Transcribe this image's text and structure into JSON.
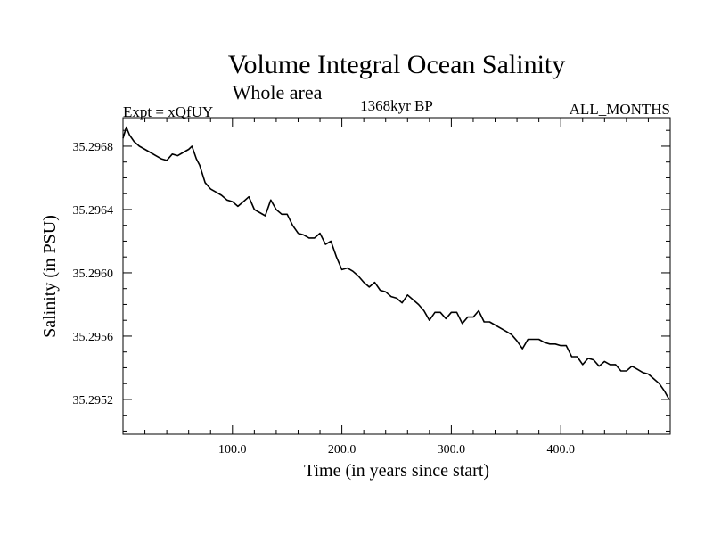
{
  "chart_data": {
    "type": "line",
    "title": "Volume Integral Ocean Salinity",
    "subtitle": "Whole area",
    "experiment_label": "Expt = xQfUY",
    "period_label": "1368kyr BP",
    "months_label": "ALL_MONTHS",
    "xlabel": "Time (in years since start)",
    "ylabel": "Salinity (in PSU)",
    "xlim": [
      0,
      500
    ],
    "ylim": [
      35.29498,
      35.29698
    ],
    "x_ticks": [
      100,
      200,
      300,
      400
    ],
    "x_tick_labels": [
      "100.0",
      "200.0",
      "300.0",
      "400.0"
    ],
    "y_ticks": [
      35.2952,
      35.2956,
      35.296,
      35.2964,
      35.2968
    ],
    "y_tick_labels": [
      "35.2952",
      "35.2956",
      "35.2960",
      "35.2964",
      "35.2968"
    ],
    "grid": false,
    "series": [
      {
        "name": "Volume Integral Ocean Salinity",
        "x": [
          0,
          3,
          6,
          10,
          15,
          20,
          25,
          30,
          35,
          40,
          45,
          50,
          55,
          60,
          63,
          67,
          70,
          75,
          80,
          85,
          90,
          95,
          100,
          105,
          110,
          115,
          120,
          125,
          130,
          135,
          140,
          145,
          150,
          155,
          160,
          165,
          170,
          175,
          180,
          185,
          190,
          195,
          200,
          205,
          210,
          215,
          220,
          225,
          230,
          235,
          240,
          245,
          250,
          255,
          260,
          265,
          270,
          275,
          280,
          285,
          290,
          295,
          300,
          305,
          310,
          315,
          320,
          325,
          330,
          335,
          340,
          345,
          350,
          355,
          360,
          365,
          370,
          375,
          380,
          385,
          390,
          395,
          400,
          405,
          410,
          415,
          420,
          425,
          430,
          435,
          440,
          445,
          450,
          455,
          460,
          465,
          470,
          475,
          480,
          485,
          490,
          495,
          499
        ],
        "y": [
          35.29685,
          35.29692,
          35.29687,
          35.29683,
          35.2968,
          35.29678,
          35.29676,
          35.29674,
          35.29672,
          35.29671,
          35.29675,
          35.29674,
          35.29676,
          35.29678,
          35.2968,
          35.29672,
          35.29668,
          35.29657,
          35.29653,
          35.29651,
          35.29649,
          35.29646,
          35.29645,
          35.29642,
          35.29645,
          35.29648,
          35.2964,
          35.29638,
          35.29636,
          35.29646,
          35.2964,
          35.29637,
          35.29637,
          35.2963,
          35.29625,
          35.29624,
          35.29622,
          35.29622,
          35.29625,
          35.29618,
          35.2962,
          35.2961,
          35.29602,
          35.29603,
          35.29601,
          35.29598,
          35.29594,
          35.29591,
          35.29594,
          35.29589,
          35.29588,
          35.29585,
          35.29584,
          35.29581,
          35.29586,
          35.29583,
          35.2958,
          35.29576,
          35.2957,
          35.29575,
          35.29575,
          35.29571,
          35.29575,
          35.29575,
          35.29568,
          35.29572,
          35.29572,
          35.29576,
          35.29569,
          35.29569,
          35.29567,
          35.29565,
          35.29563,
          35.29561,
          35.29557,
          35.29552,
          35.29558,
          35.29558,
          35.29558,
          35.29556,
          35.29555,
          35.29555,
          35.29554,
          35.29554,
          35.29547,
          35.29547,
          35.29542,
          35.29546,
          35.29545,
          35.29541,
          35.29544,
          35.29542,
          35.29542,
          35.29538,
          35.29538,
          35.29541,
          35.29539,
          35.29537,
          35.29536,
          35.29533,
          35.2953,
          35.29525,
          35.2952
        ]
      }
    ]
  }
}
